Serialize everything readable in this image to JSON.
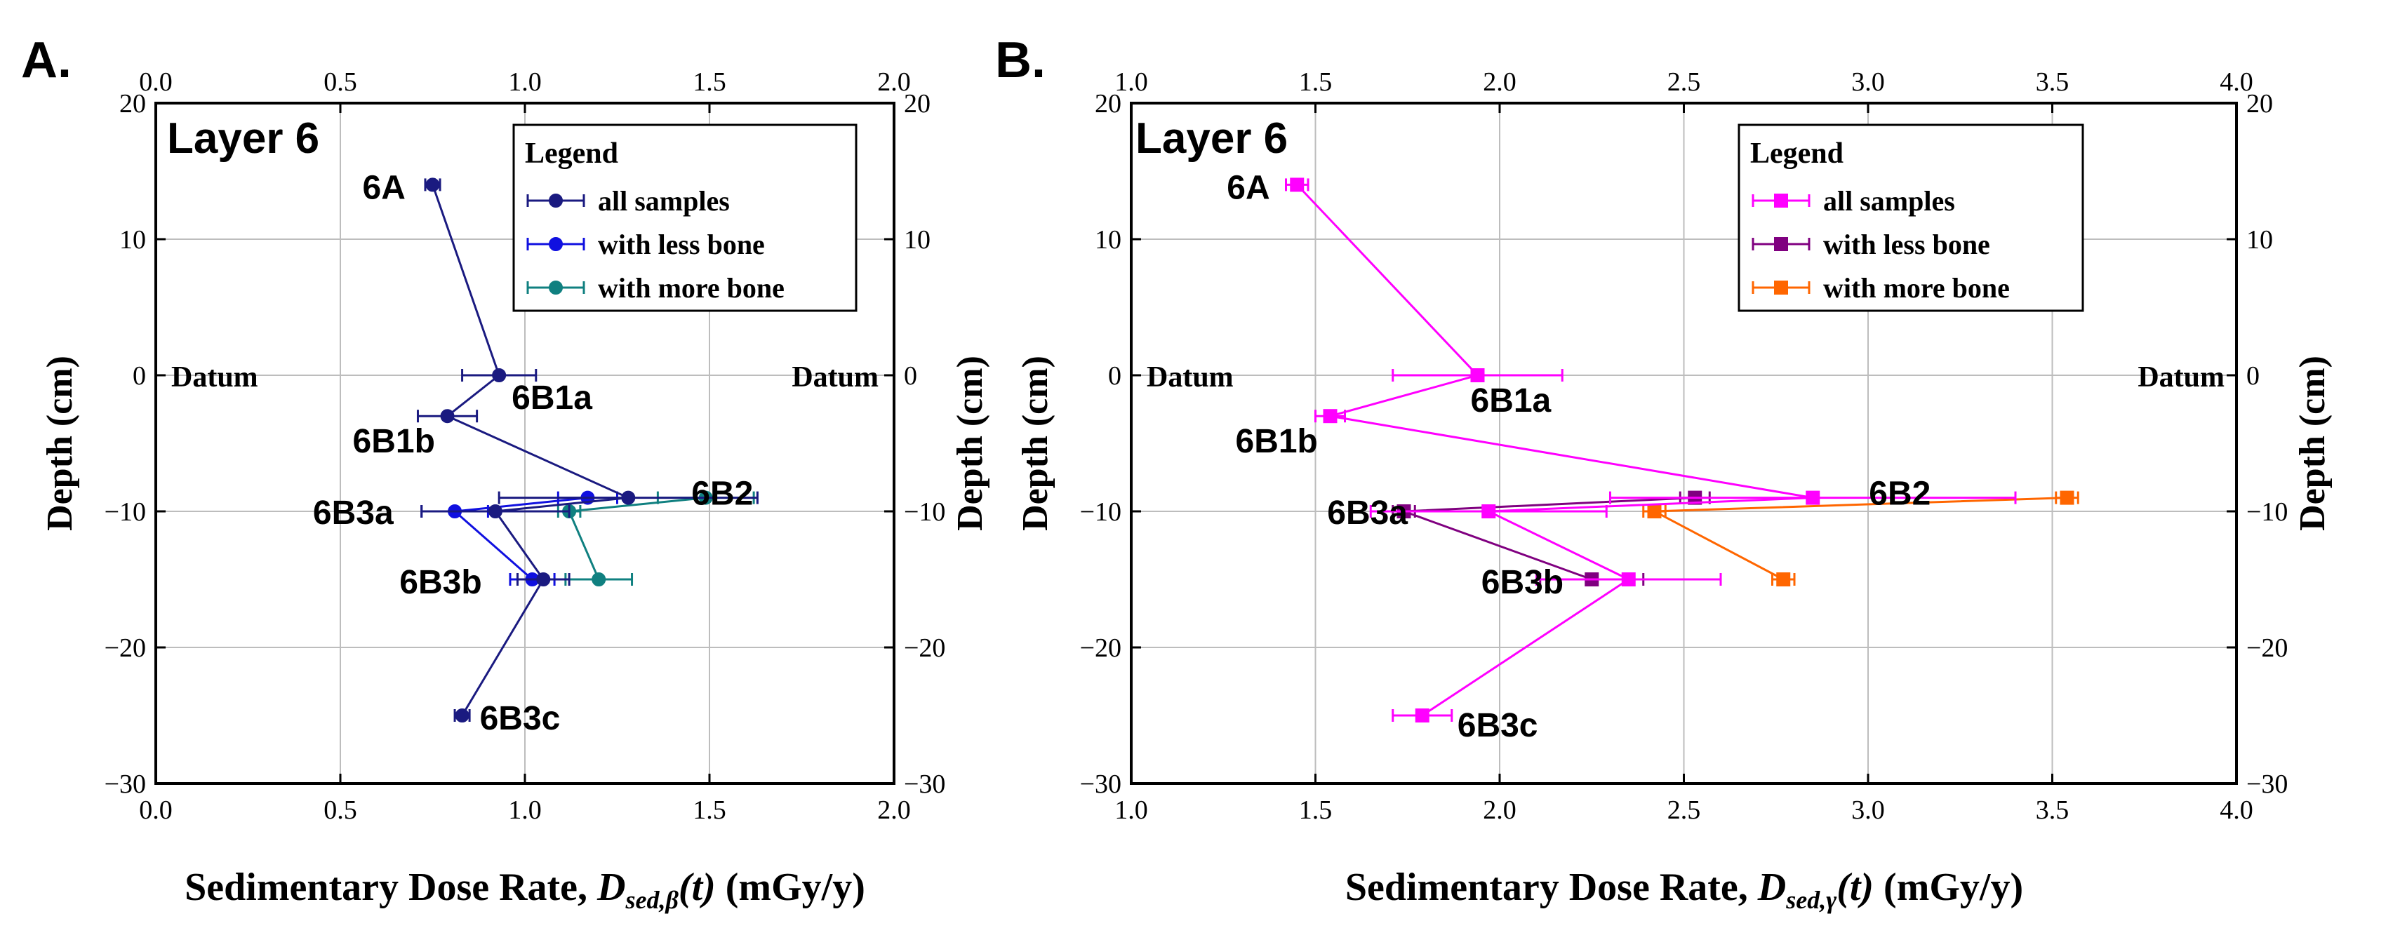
{
  "figure": {
    "datum_label": "Datum",
    "depth_label": "Depth (cm)"
  },
  "chart_data": [
    {
      "panel_label": "A.",
      "type": "scatter",
      "title": "Layer 6",
      "xlabel_parts": {
        "prefix": "Sedimentary Dose Rate,",
        "symbol": "D",
        "subscript": "sed,β",
        "arg": "(t)",
        "unit": "(mGy/y)"
      },
      "ylabel": "Depth (cm)",
      "xlim": [
        0,
        2
      ],
      "ylim": [
        -30,
        20
      ],
      "xticks": [
        "0.0",
        "0.5",
        "1.0",
        "1.5",
        "2.0"
      ],
      "xtick_values": [
        0,
        0.5,
        1.0,
        1.5,
        2.0
      ],
      "yticks": [
        "−30",
        "−20",
        "−10",
        "0",
        "10",
        "20"
      ],
      "ytick_values": [
        -30,
        -20,
        -10,
        0,
        10,
        20
      ],
      "grid": true,
      "legend": {
        "title": "Legend",
        "position": "top-right"
      },
      "datum_depth": 0,
      "series": [
        {
          "name": "all samples",
          "color": "#1a1a80",
          "marker": "circle",
          "points": [
            {
              "x": 0.75,
              "y": 14,
              "err": 0.02,
              "label": "6A"
            },
            {
              "x": 0.93,
              "y": 0,
              "err": 0.1,
              "label": "6B1a"
            },
            {
              "x": 0.79,
              "y": -3,
              "err": 0.08,
              "label": "6B1b"
            },
            {
              "x": 1.28,
              "y": -9,
              "err": 0.35,
              "label": "6B2"
            },
            {
              "x": 0.92,
              "y": -10,
              "err": 0.2,
              "label": "6B3a"
            },
            {
              "x": 1.05,
              "y": -15,
              "err": 0.07,
              "label": "6B3b"
            },
            {
              "x": 0.83,
              "y": -25,
              "err": 0.02,
              "label": "6B3c"
            }
          ]
        },
        {
          "name": "with less bone",
          "color": "#1010e0",
          "marker": "circle",
          "points": [
            {
              "x": 1.17,
              "y": -9,
              "err": 0.08
            },
            {
              "x": 0.81,
              "y": -10,
              "err": 0.09
            },
            {
              "x": 1.02,
              "y": -15,
              "err": 0.06
            }
          ]
        },
        {
          "name": "with more bone",
          "color": "#108080",
          "marker": "circle",
          "points": [
            {
              "x": 1.49,
              "y": -9,
              "err": 0.13
            },
            {
              "x": 1.12,
              "y": -10,
              "err": 0.03
            },
            {
              "x": 1.2,
              "y": -15,
              "err": 0.09
            }
          ]
        }
      ]
    },
    {
      "panel_label": "B.",
      "type": "scatter",
      "title": "Layer 6",
      "xlabel_parts": {
        "prefix": "Sedimentary Dose Rate,",
        "symbol": "D",
        "subscript": "sed,γ",
        "arg": "(t)",
        "unit": "(mGy/y)"
      },
      "ylabel": "Depth (cm)",
      "xlim": [
        1,
        4
      ],
      "ylim": [
        -30,
        20
      ],
      "xticks": [
        "1.0",
        "1.5",
        "2.0",
        "2.5",
        "3.0",
        "3.5",
        "4.0"
      ],
      "xtick_values": [
        1.0,
        1.5,
        2.0,
        2.5,
        3.0,
        3.5,
        4.0
      ],
      "yticks": [
        "−30",
        "−20",
        "−10",
        "0",
        "10",
        "20"
      ],
      "ytick_values": [
        -30,
        -20,
        -10,
        0,
        10,
        20
      ],
      "grid": true,
      "legend": {
        "title": "Legend",
        "position": "top-right"
      },
      "datum_depth": 0,
      "series": [
        {
          "name": "all samples",
          "color": "#ff00ff",
          "marker": "square",
          "points": [
            {
              "x": 1.45,
              "y": 14,
              "err": 0.03,
              "label": "6A"
            },
            {
              "x": 1.94,
              "y": 0,
              "err": 0.23,
              "label": "6B1a"
            },
            {
              "x": 1.54,
              "y": -3,
              "err": 0.04,
              "label": "6B1b"
            },
            {
              "x": 2.85,
              "y": -9,
              "err": 0.55,
              "label": "6B2"
            },
            {
              "x": 1.97,
              "y": -10,
              "err": 0.32,
              "label": "6B3a"
            },
            {
              "x": 2.35,
              "y": -15,
              "err": 0.25,
              "label": "6B3b"
            },
            {
              "x": 1.79,
              "y": -25,
              "err": 0.08,
              "label": "6B3c"
            }
          ]
        },
        {
          "name": "with less bone",
          "color": "#800080",
          "marker": "square",
          "points": [
            {
              "x": 2.53,
              "y": -9,
              "err": 0.04
            },
            {
              "x": 1.74,
              "y": -10,
              "err": 0.03
            },
            {
              "x": 2.25,
              "y": -15,
              "err": 0.14
            }
          ]
        },
        {
          "name": "with more bone",
          "color": "#ff6600",
          "marker": "square",
          "points": [
            {
              "x": 3.54,
              "y": -9,
              "err": 0.03
            },
            {
              "x": 2.42,
              "y": -10,
              "err": 0.03
            },
            {
              "x": 2.77,
              "y": -15,
              "err": 0.03
            }
          ]
        }
      ]
    }
  ]
}
